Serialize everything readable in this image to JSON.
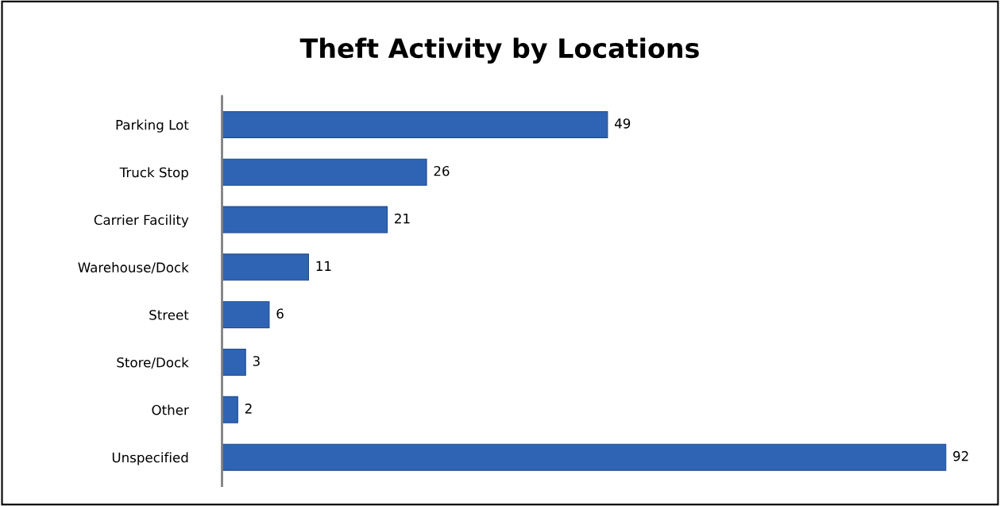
{
  "chart_data": {
    "type": "bar",
    "orientation": "horizontal",
    "title": "Theft Activity by Locations",
    "categories": [
      "Parking Lot",
      "Truck Stop",
      "Carrier Facility",
      "Warehouse/Dock",
      "Street",
      "Store/Dock",
      "Other",
      "Unspecified"
    ],
    "values": [
      49,
      26,
      21,
      11,
      6,
      3,
      2,
      92
    ],
    "color": "#2f64b5",
    "data_labels": true,
    "tick_labels": "y",
    "grid": false,
    "legend": false
  }
}
